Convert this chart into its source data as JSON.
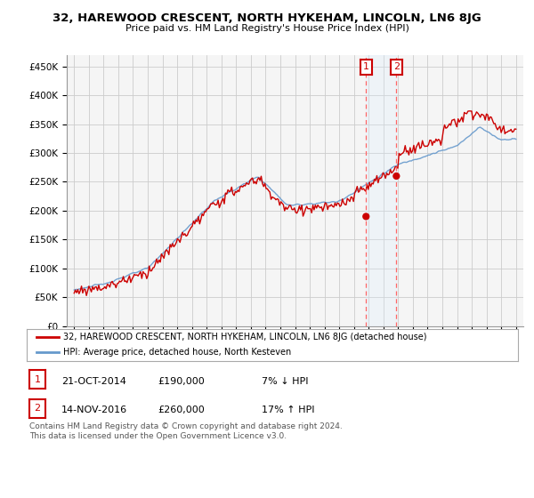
{
  "title": "32, HAREWOOD CRESCENT, NORTH HYKEHAM, LINCOLN, LN6 8JG",
  "subtitle": "Price paid vs. HM Land Registry's House Price Index (HPI)",
  "legend_line1": "32, HAREWOOD CRESCENT, NORTH HYKEHAM, LINCOLN, LN6 8JG (detached house)",
  "legend_line2": "HPI: Average price, detached house, North Kesteven",
  "annotation1_date": "21-OCT-2014",
  "annotation1_price": "£190,000",
  "annotation1_hpi": "7% ↓ HPI",
  "annotation2_date": "14-NOV-2016",
  "annotation2_price": "£260,000",
  "annotation2_hpi": "17% ↑ HPI",
  "footer": "Contains HM Land Registry data © Crown copyright and database right 2024.\nThis data is licensed under the Open Government Licence v3.0.",
  "sale1_year": 2014.82,
  "sale1_value": 190000,
  "sale2_year": 2016.88,
  "sale2_value": 260000,
  "red_color": "#cc0000",
  "blue_color": "#6699cc",
  "shade_color": "#ddeeff",
  "background_color": "#f5f5f5",
  "grid_color": "#cccccc",
  "ylim": [
    0,
    470000
  ],
  "xlim_start": 1994.5,
  "xlim_end": 2025.5
}
